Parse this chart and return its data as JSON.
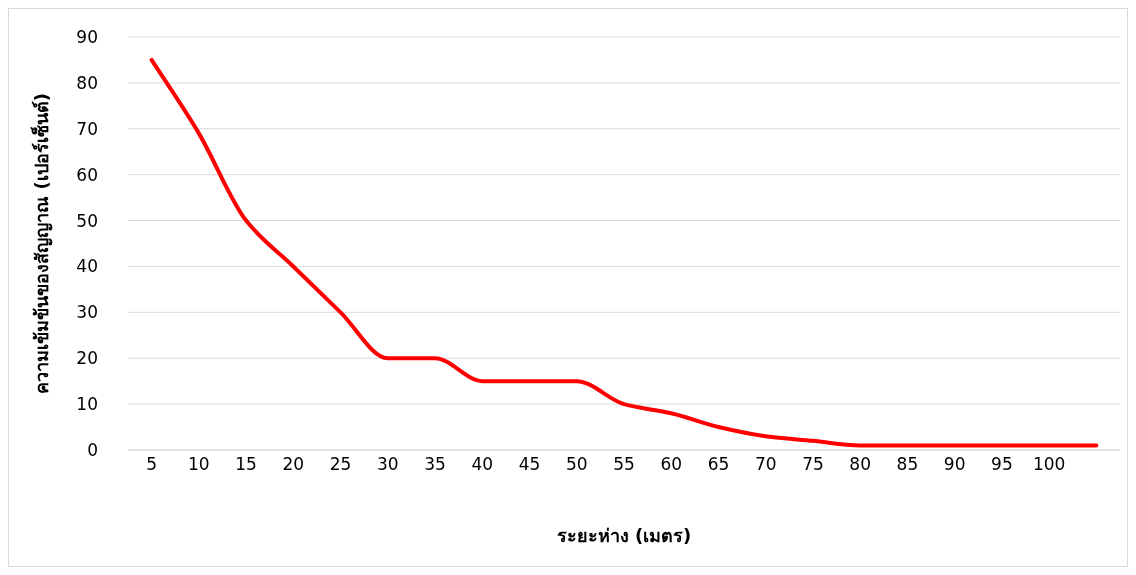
{
  "chart_data": {
    "type": "line",
    "xlabel": "ระยะห่าง (เมตร)",
    "ylabel": "ความเข้มข้นของสัญญาณ (เปอร์เซ็นต์)",
    "categories": [
      "5",
      "10",
      "15",
      "20",
      "25",
      "30",
      "35",
      "40",
      "45",
      "50",
      "55",
      "60",
      "65",
      "70",
      "75",
      "80",
      "85",
      "90",
      "95",
      "100",
      null
    ],
    "series": [
      {
        "color": "#ff0000",
        "values": [
          85,
          69,
          50,
          40,
          30,
          20,
          20,
          15,
          15,
          15,
          10,
          8,
          5,
          3,
          2,
          1,
          1,
          1,
          1,
          1,
          1
        ]
      }
    ],
    "ylim": [
      0,
      90
    ],
    "yticks": [
      0,
      10,
      20,
      30,
      40,
      50,
      60,
      70,
      80,
      90
    ],
    "grid": "y"
  }
}
